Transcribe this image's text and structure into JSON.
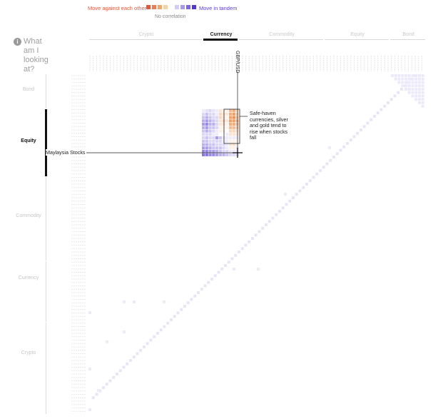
{
  "legend": {
    "negative_label": "Move against each other",
    "positive_label": "Move in tandem",
    "neutral_label": "No correlation",
    "negative_colors": [
      "#e2583e",
      "#ea7d53",
      "#f0a56b",
      "#f7d1a6"
    ],
    "positive_colors": [
      "#d2ccf4",
      "#a89ae9",
      "#7d66df",
      "#5038d2"
    ]
  },
  "info": {
    "icon": "info-icon",
    "text": "What am I looking at?"
  },
  "top_categories": [
    {
      "label": "Crypto",
      "active": false
    },
    {
      "label": "Currency",
      "active": true
    },
    {
      "label": "Commodity",
      "active": false
    },
    {
      "label": "Equity",
      "active": false
    },
    {
      "label": "Bond",
      "active": false
    }
  ],
  "side_categories": [
    {
      "label": "Bond",
      "active": false
    },
    {
      "label": "Equity",
      "active": true
    },
    {
      "label": "Commodity",
      "active": false
    },
    {
      "label": "Currency",
      "active": false
    },
    {
      "label": "Crypto",
      "active": false
    }
  ],
  "annotation": {
    "text": "Safe-haven currencies, silver and gold tend to rise when stocks fall"
  },
  "hover": {
    "column_label": "GBP/USD",
    "row_label": "Maylaysia Stocks"
  },
  "chart_data": {
    "type": "heatmap",
    "title": "",
    "value_range": [
      -1,
      1
    ],
    "x_groups": [
      "Crypto",
      "Currency",
      "Commodity",
      "Equity",
      "Bond"
    ],
    "y_groups": [
      "Bond",
      "Equity",
      "Commodity",
      "Currency",
      "Crypto"
    ],
    "highlight": {
      "row_group": "Equity",
      "col_group": "Currency",
      "note": "Safe-haven currencies, silver and gold tend to rise when stocks fall"
    },
    "hovered_cell": {
      "row": "Maylaysia Stocks",
      "column": "GBP/USD"
    },
    "highlighted_block_values": [
      [
        0.1,
        0.15,
        0.2,
        0.15,
        0.1,
        -0.2,
        -0.1,
        -0.1,
        -0.5,
        -0.6,
        -0.3
      ],
      [
        0.2,
        0.3,
        0.2,
        0.2,
        0.1,
        -0.3,
        -0.2,
        -0.2,
        -0.6,
        -0.7,
        -0.4
      ],
      [
        0.3,
        0.4,
        0.3,
        0.2,
        0.2,
        -0.3,
        -0.2,
        -0.1,
        -0.7,
        -0.8,
        -0.5
      ],
      [
        0.4,
        0.5,
        0.4,
        0.3,
        0.2,
        -0.2,
        -0.3,
        -0.2,
        -0.7,
        -0.7,
        -0.6
      ],
      [
        0.5,
        0.6,
        0.4,
        0.4,
        0.2,
        -0.2,
        -0.2,
        -0.1,
        -0.6,
        -0.6,
        -0.5
      ],
      [
        0.4,
        0.5,
        0.3,
        0.3,
        0.2,
        -0.1,
        -0.1,
        -0.1,
        -0.5,
        -0.5,
        -0.4
      ],
      [
        0.3,
        0.4,
        0.3,
        0.2,
        0.1,
        -0.1,
        -0.1,
        0.0,
        -0.3,
        -0.3,
        -0.3
      ],
      [
        0.2,
        0.2,
        0.2,
        0.1,
        0.1,
        0.0,
        0.0,
        0.1,
        -0.2,
        -0.2,
        -0.2
      ],
      [
        0.2,
        0.3,
        0.2,
        0.2,
        0.5,
        0.3,
        0.1,
        0.1,
        0.1,
        0.1,
        0.1
      ],
      [
        0.3,
        0.3,
        0.2,
        0.2,
        0.2,
        0.2,
        0.1,
        0.1,
        -0.1,
        -0.1,
        -0.1
      ],
      [
        0.4,
        0.4,
        0.3,
        0.3,
        0.2,
        0.2,
        0.2,
        0.1,
        -0.2,
        -0.2,
        -0.1
      ],
      [
        0.5,
        0.5,
        0.4,
        0.3,
        0.3,
        0.3,
        0.2,
        0.1,
        -0.1,
        -0.1,
        0.1
      ],
      [
        0.6,
        0.6,
        0.5,
        0.5,
        0.4,
        0.3,
        0.2,
        0.2,
        0.1,
        0.1,
        0.1
      ],
      [
        0.7,
        0.7,
        0.6,
        0.6,
        0.5,
        0.4,
        0.4,
        0.3,
        0.2,
        0.2,
        0.2
      ]
    ],
    "diagonal_value": 1
  }
}
